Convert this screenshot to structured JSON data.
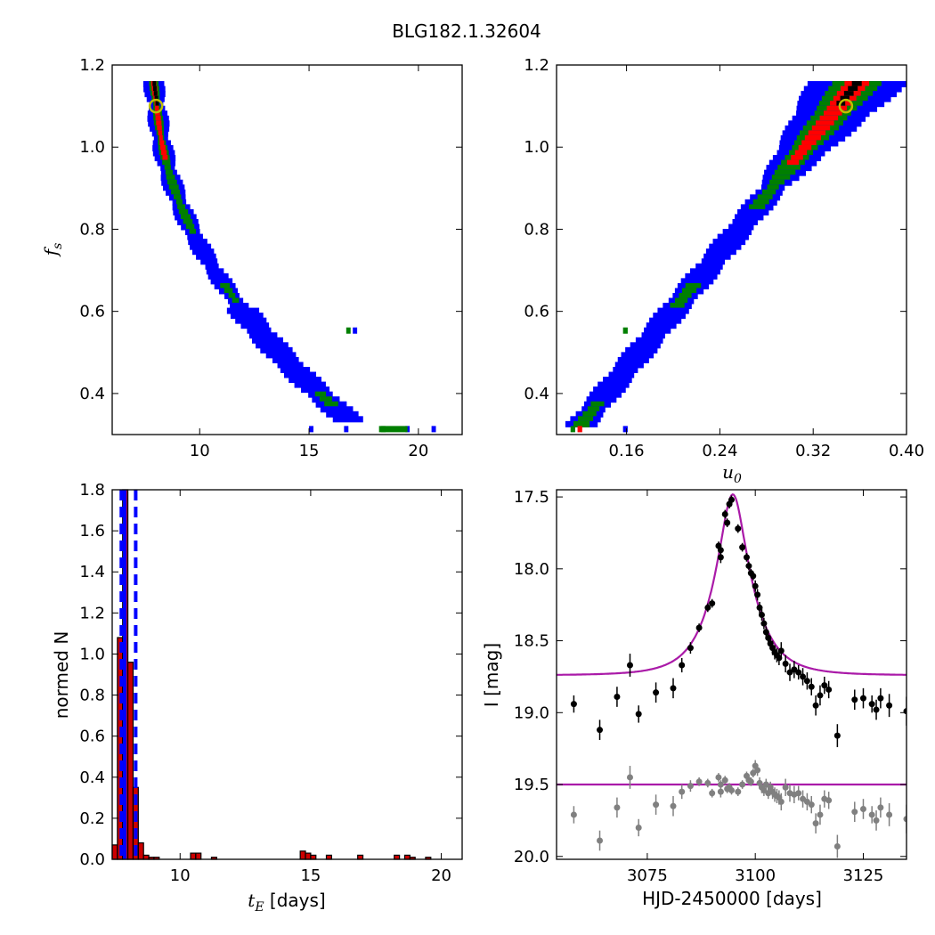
{
  "title": "BLG182.1.32604",
  "colors": {
    "blue": "#0000ff",
    "green": "#007f00",
    "red": "#ff0000",
    "black": "#000000",
    "yellow": "#bfbf00",
    "magenta": "#aa1aa8",
    "gray": "#808080",
    "hist_fill": "#cc0000"
  },
  "chart_data": [
    {
      "id": "fs_vs_tE",
      "type": "heatmap",
      "xlabel": "",
      "ylabel": "f_s",
      "xlim": [
        6,
        22
      ],
      "ylim": [
        0.3,
        1.2
      ],
      "xticks": [
        10,
        15,
        20
      ],
      "yticks": [
        0.4,
        0.6,
        0.8,
        1.0,
        1.2
      ],
      "best_fit": {
        "x": 8.0,
        "y": 1.1
      },
      "contour_levels": [
        "blue",
        "green",
        "red",
        "black"
      ]
    },
    {
      "id": "fs_vs_u0",
      "type": "heatmap",
      "xlabel": "u_0",
      "ylabel": "",
      "xlim": [
        0.1,
        0.4
      ],
      "ylim": [
        0.3,
        1.2
      ],
      "xticks": [
        0.16,
        0.24,
        0.32,
        0.4
      ],
      "xtick_labels": [
        "0.16",
        "0.24",
        "0.32",
        "0.40"
      ],
      "yticks": [
        0.4,
        0.6,
        0.8,
        1.0,
        1.2
      ],
      "best_fit": {
        "x": 0.348,
        "y": 1.1
      },
      "contour_levels": [
        "blue",
        "green",
        "red",
        "black"
      ]
    },
    {
      "id": "tE_hist",
      "type": "bar",
      "xlabel": "t_E  [days]",
      "ylabel": "normed N",
      "xlim": [
        7.4,
        20.8
      ],
      "ylim": [
        0,
        1.8
      ],
      "xticks": [
        10,
        15,
        20
      ],
      "yticks": [
        0.0,
        0.2,
        0.4,
        0.6,
        0.8,
        1.0,
        1.2,
        1.4,
        1.6,
        1.8
      ],
      "bin_width": 0.2,
      "bins": [
        {
          "x": 7.4,
          "v": 0.07
        },
        {
          "x": 7.6,
          "v": 1.08
        },
        {
          "x": 7.8,
          "v": 1.8
        },
        {
          "x": 8.0,
          "v": 0.96
        },
        {
          "x": 8.2,
          "v": 0.35
        },
        {
          "x": 8.4,
          "v": 0.08
        },
        {
          "x": 8.6,
          "v": 0.02
        },
        {
          "x": 8.8,
          "v": 0.01
        },
        {
          "x": 9.0,
          "v": 0.01
        },
        {
          "x": 10.4,
          "v": 0.03
        },
        {
          "x": 10.6,
          "v": 0.03
        },
        {
          "x": 11.2,
          "v": 0.01
        },
        {
          "x": 14.6,
          "v": 0.04
        },
        {
          "x": 14.8,
          "v": 0.03
        },
        {
          "x": 15.0,
          "v": 0.02
        },
        {
          "x": 15.6,
          "v": 0.02
        },
        {
          "x": 16.8,
          "v": 0.02
        },
        {
          "x": 18.2,
          "v": 0.02
        },
        {
          "x": 18.6,
          "v": 0.02
        },
        {
          "x": 18.8,
          "v": 0.01
        },
        {
          "x": 19.4,
          "v": 0.01
        }
      ],
      "vlines": [
        {
          "x": 7.88,
          "style": "solid"
        },
        {
          "x": 7.75,
          "style": "dashed"
        },
        {
          "x": 8.3,
          "style": "dashed"
        }
      ]
    },
    {
      "id": "lightcurve",
      "type": "scatter",
      "xlabel": "HJD-2450000 [days]",
      "ylabel": "I [mag]",
      "xlim": [
        3054,
        3135
      ],
      "ylim": [
        20.02,
        17.45
      ],
      "xticks": [
        3075,
        3100,
        3125
      ],
      "yticks": [
        17.5,
        18.0,
        18.5,
        19.0,
        19.5,
        20.0
      ],
      "ytick_labels": [
        "17.5",
        "18.0",
        "18.5",
        "19.0",
        "19.5",
        "20.0"
      ],
      "model": {
        "t0": 3094.8,
        "tE": 8.0,
        "u0": 0.35,
        "baseline": 18.74,
        "fs": 1.1
      },
      "residual_baseline": 19.5,
      "series": [
        {
          "color": "black",
          "points": [
            [
              3058,
              18.94,
              0.06
            ],
            [
              3064,
              19.12,
              0.07
            ],
            [
              3068,
              18.89,
              0.07
            ],
            [
              3071,
              18.67,
              0.08
            ],
            [
              3073,
              19.01,
              0.06
            ],
            [
              3077,
              18.86,
              0.07
            ],
            [
              3081,
              18.83,
              0.07
            ],
            [
              3083,
              18.67,
              0.05
            ],
            [
              3085,
              18.55,
              0.04
            ],
            [
              3087,
              18.41,
              0.03
            ],
            [
              3089,
              18.27,
              0.03
            ],
            [
              3090,
              18.24,
              0.03
            ],
            [
              3091.5,
              17.84,
              0.03
            ],
            [
              3092,
              17.92,
              0.04
            ],
            [
              3092,
              17.87,
              0.03
            ],
            [
              3093,
              17.62,
              0.03
            ],
            [
              3093.5,
              17.68,
              0.03
            ],
            [
              3094,
              17.55,
              0.03
            ],
            [
              3094.5,
              17.52,
              0.03
            ],
            [
              3096,
              17.72,
              0.03
            ],
            [
              3097,
              17.85,
              0.03
            ],
            [
              3098,
              17.92,
              0.03
            ],
            [
              3098.5,
              17.98,
              0.03
            ],
            [
              3099,
              18.03,
              0.03
            ],
            [
              3099.5,
              18.05,
              0.03
            ],
            [
              3100,
              18.12,
              0.04
            ],
            [
              3100.5,
              18.18,
              0.04
            ],
            [
              3101,
              18.27,
              0.04
            ],
            [
              3101.5,
              18.32,
              0.04
            ],
            [
              3102,
              18.38,
              0.04
            ],
            [
              3102.5,
              18.44,
              0.04
            ],
            [
              3103,
              18.48,
              0.04
            ],
            [
              3103.5,
              18.52,
              0.04
            ],
            [
              3104,
              18.55,
              0.05
            ],
            [
              3104.5,
              18.58,
              0.05
            ],
            [
              3105,
              18.6,
              0.05
            ],
            [
              3105.5,
              18.62,
              0.05
            ],
            [
              3106,
              18.57,
              0.06
            ],
            [
              3107,
              18.66,
              0.06
            ],
            [
              3108,
              18.72,
              0.06
            ],
            [
              3109,
              18.7,
              0.06
            ],
            [
              3110,
              18.72,
              0.05
            ],
            [
              3111,
              18.75,
              0.06
            ],
            [
              3112,
              18.78,
              0.06
            ],
            [
              3113,
              18.82,
              0.06
            ],
            [
              3114,
              18.95,
              0.07
            ],
            [
              3115,
              18.88,
              0.07
            ],
            [
              3116,
              18.81,
              0.06
            ],
            [
              3117,
              18.84,
              0.06
            ],
            [
              3119,
              19.16,
              0.08
            ],
            [
              3123,
              18.91,
              0.07
            ],
            [
              3125,
              18.9,
              0.07
            ],
            [
              3127,
              18.94,
              0.06
            ],
            [
              3128,
              18.98,
              0.07
            ],
            [
              3129,
              18.9,
              0.07
            ],
            [
              3131,
              18.95,
              0.08
            ],
            [
              3135,
              18.99,
              0.1
            ]
          ]
        },
        {
          "color": "gray",
          "points": [
            [
              3058,
              19.71,
              0.06
            ],
            [
              3064,
              19.89,
              0.07
            ],
            [
              3068,
              19.66,
              0.07
            ],
            [
              3071,
              19.45,
              0.08
            ],
            [
              3073,
              19.8,
              0.06
            ],
            [
              3077,
              19.64,
              0.07
            ],
            [
              3081,
              19.65,
              0.07
            ],
            [
              3083,
              19.55,
              0.05
            ],
            [
              3085,
              19.51,
              0.04
            ],
            [
              3087,
              19.48,
              0.03
            ],
            [
              3089,
              19.49,
              0.03
            ],
            [
              3090,
              19.56,
              0.03
            ],
            [
              3091.5,
              19.45,
              0.03
            ],
            [
              3092,
              19.55,
              0.04
            ],
            [
              3092,
              19.5,
              0.03
            ],
            [
              3093,
              19.47,
              0.03
            ],
            [
              3093.5,
              19.53,
              0.03
            ],
            [
              3094,
              19.52,
              0.03
            ],
            [
              3094.5,
              19.54,
              0.03
            ],
            [
              3096,
              19.55,
              0.03
            ],
            [
              3097,
              19.5,
              0.03
            ],
            [
              3098,
              19.44,
              0.03
            ],
            [
              3098.5,
              19.47,
              0.03
            ],
            [
              3099,
              19.48,
              0.03
            ],
            [
              3099.5,
              19.42,
              0.03
            ],
            [
              3100,
              19.37,
              0.04
            ],
            [
              3100.5,
              19.4,
              0.04
            ],
            [
              3101,
              19.49,
              0.04
            ],
            [
              3101.5,
              19.52,
              0.04
            ],
            [
              3102,
              19.54,
              0.04
            ],
            [
              3102.5,
              19.5,
              0.04
            ],
            [
              3103,
              19.56,
              0.04
            ],
            [
              3103.5,
              19.52,
              0.04
            ],
            [
              3104,
              19.55,
              0.05
            ],
            [
              3104.5,
              19.57,
              0.05
            ],
            [
              3105,
              19.58,
              0.05
            ],
            [
              3105.5,
              19.59,
              0.05
            ],
            [
              3106,
              19.62,
              0.06
            ],
            [
              3107,
              19.52,
              0.06
            ],
            [
              3108,
              19.56,
              0.06
            ],
            [
              3109,
              19.57,
              0.06
            ],
            [
              3110,
              19.56,
              0.05
            ],
            [
              3111,
              19.6,
              0.06
            ],
            [
              3112,
              19.62,
              0.06
            ],
            [
              3113,
              19.64,
              0.06
            ],
            [
              3114,
              19.77,
              0.07
            ],
            [
              3115,
              19.71,
              0.07
            ],
            [
              3116,
              19.6,
              0.06
            ],
            [
              3117,
              19.61,
              0.06
            ],
            [
              3119,
              19.93,
              0.08
            ],
            [
              3123,
              19.69,
              0.07
            ],
            [
              3125,
              19.67,
              0.07
            ],
            [
              3127,
              19.71,
              0.06
            ],
            [
              3128,
              19.75,
              0.07
            ],
            [
              3129,
              19.66,
              0.07
            ],
            [
              3131,
              19.71,
              0.08
            ],
            [
              3135,
              19.74,
              0.1
            ]
          ]
        }
      ]
    }
  ]
}
